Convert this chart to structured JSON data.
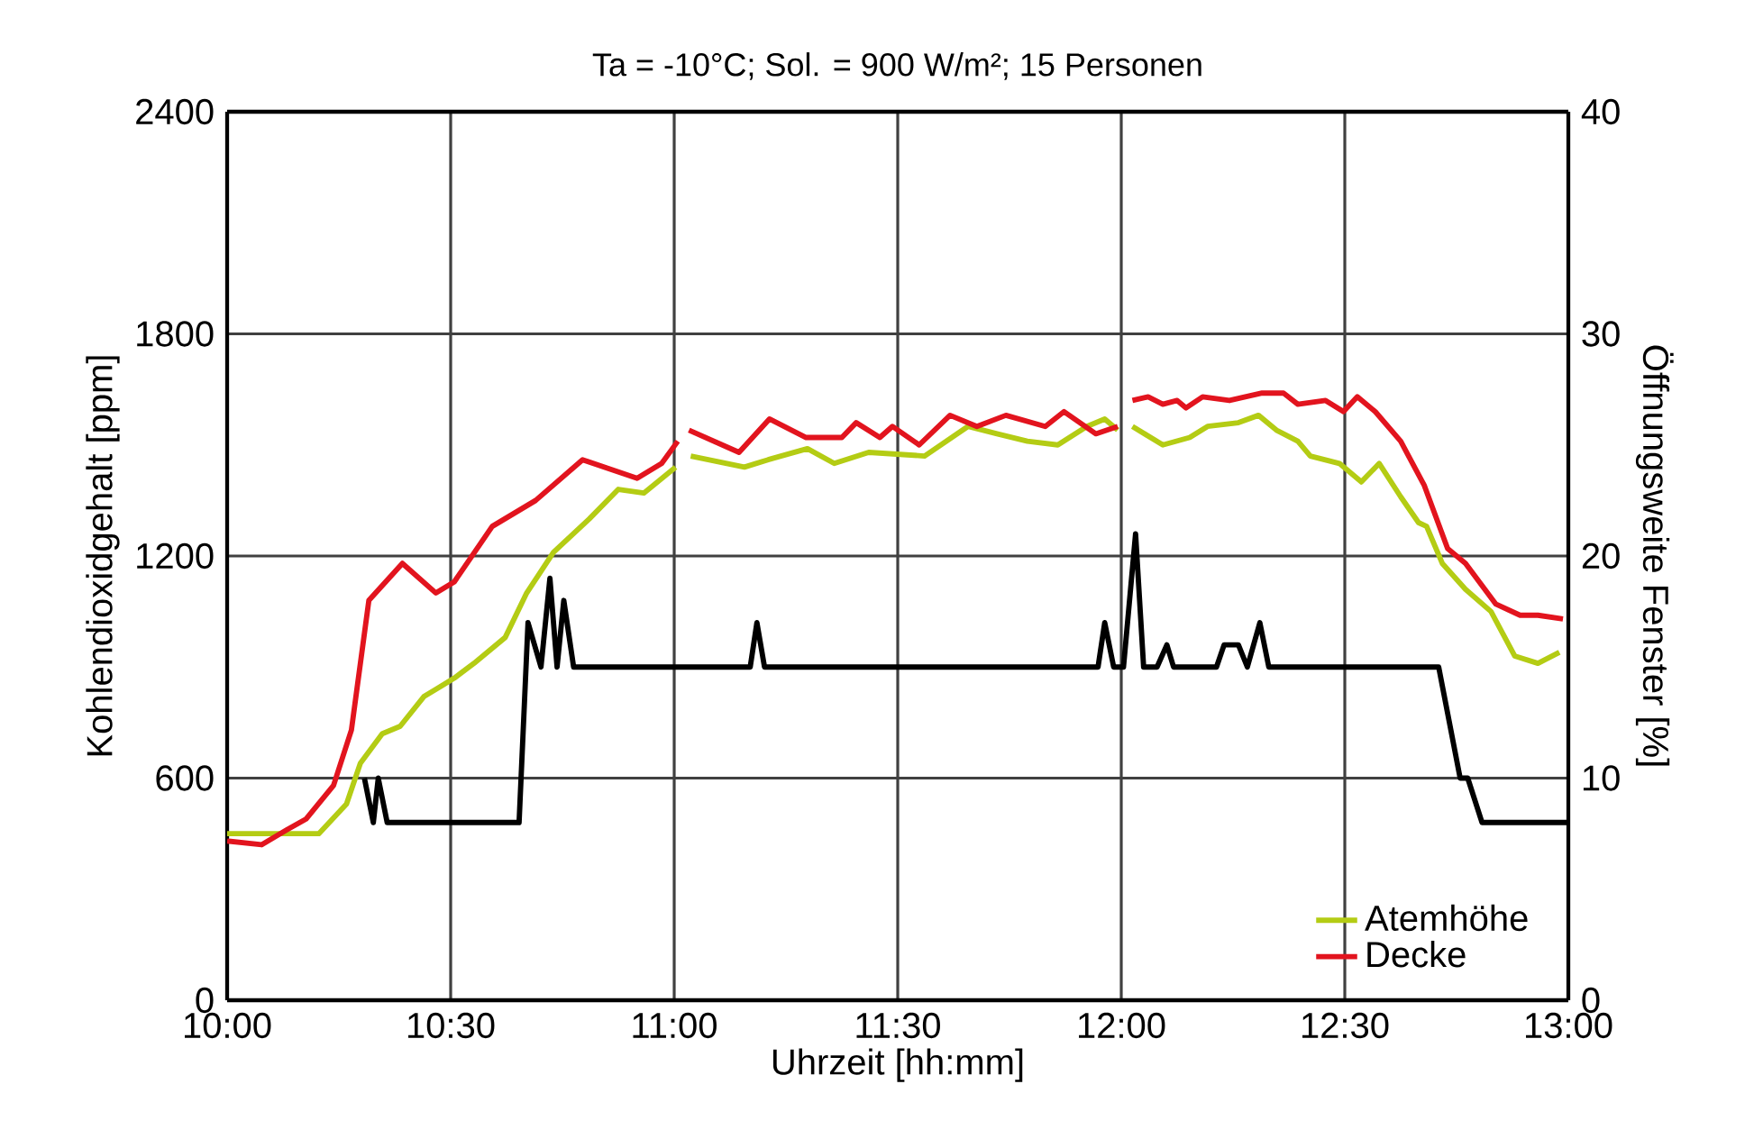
{
  "chart_data": {
    "type": "line",
    "title": "Ta = -10°C; Sol. = 900 W/m²; 15 Personen",
    "xlabel": "Uhrzeit [hh:mm]",
    "ylabel": "Kohlendioxidgehalt [ppm]",
    "y2label": "Öffnungsweite Fenster [%]",
    "xlim": [
      10,
      13
    ],
    "xticks": [
      {
        "value": 10,
        "label": "10:00"
      },
      {
        "value": 10.5,
        "label": "10:30"
      },
      {
        "value": 11,
        "label": "11:00"
      },
      {
        "value": 11.5,
        "label": "11:30"
      },
      {
        "value": 12,
        "label": "12:00"
      },
      {
        "value": 12.5,
        "label": "12:30"
      },
      {
        "value": 13,
        "label": "13:00"
      }
    ],
    "ylim": [
      0,
      2400
    ],
    "yticks": [
      0,
      600,
      1200,
      1800,
      2400
    ],
    "y2lim": [
      0,
      40
    ],
    "y2ticks": [
      0,
      10,
      20,
      30,
      40
    ],
    "grid": true,
    "legend": "bottom right",
    "series": [
      {
        "name": "Atemhöhe",
        "color": "#b4cc14",
        "x": [
          10.0,
          10.108,
          10.205,
          10.267,
          10.298,
          10.347,
          10.387,
          10.44,
          10.508,
          10.552,
          10.622,
          10.67,
          10.73,
          10.81,
          10.875,
          10.932,
          11.003,
          11.02,
          11.037,
          11.157,
          11.21,
          11.298,
          11.358,
          11.435,
          11.56,
          11.657,
          11.722,
          11.79,
          11.858,
          11.923,
          11.963,
          11.992,
          12.01,
          12.025,
          12.093,
          12.153,
          12.193,
          12.262,
          12.307,
          12.347,
          12.395,
          12.423,
          12.488,
          12.537,
          12.577,
          12.625,
          12.665,
          12.683,
          12.718,
          12.77,
          12.827,
          12.88,
          12.932,
          12.98
        ],
        "values": [
          450,
          450,
          450,
          530,
          640,
          720,
          740,
          820,
          870,
          910,
          980,
          1100,
          1210,
          1300,
          1380,
          1370,
          1440,
          null,
          1470,
          1440,
          1460,
          1490,
          1450,
          1480,
          1470,
          1550,
          1530,
          1510,
          1500,
          1550,
          1570,
          1540,
          null,
          1550,
          1500,
          1520,
          1550,
          1560,
          1580,
          1540,
          1510,
          1470,
          1450,
          1400,
          1450,
          1360,
          1290,
          1280,
          1180,
          1110,
          1050,
          930,
          910,
          940
        ]
      },
      {
        "name": "Decke",
        "color": "#e2141e",
        "x": [
          10.0,
          10.077,
          10.133,
          10.177,
          10.238,
          10.278,
          10.317,
          10.392,
          10.467,
          10.508,
          10.593,
          10.69,
          10.795,
          10.917,
          10.972,
          11.008,
          11.02,
          11.033,
          11.145,
          11.213,
          11.295,
          11.375,
          11.407,
          11.46,
          11.488,
          11.548,
          11.617,
          11.677,
          11.742,
          11.83,
          11.872,
          11.943,
          11.992,
          12.01,
          12.025,
          12.06,
          12.093,
          12.125,
          12.145,
          12.182,
          12.242,
          12.315,
          12.363,
          12.395,
          12.457,
          12.497,
          12.528,
          12.568,
          12.625,
          12.678,
          12.73,
          12.77,
          12.838,
          12.892,
          12.932,
          12.988
        ],
        "values": [
          430,
          420,
          460,
          490,
          580,
          730,
          1080,
          1180,
          1100,
          1130,
          1280,
          1350,
          1460,
          1410,
          1450,
          1510,
          null,
          1540,
          1480,
          1570,
          1520,
          1520,
          1560,
          1520,
          1550,
          1500,
          1580,
          1550,
          1580,
          1550,
          1590,
          1530,
          1550,
          null,
          1620,
          1630,
          1610,
          1620,
          1600,
          1630,
          1620,
          1640,
          1640,
          1610,
          1620,
          1590,
          1630,
          1590,
          1510,
          1390,
          1220,
          1180,
          1070,
          1040,
          1040,
          1030
        ]
      },
      {
        "color": "#000000",
        "axis": "y2",
        "x": [
          10.307,
          10.327,
          10.338,
          10.358,
          10.653,
          10.673,
          10.702,
          10.722,
          10.738,
          10.753,
          10.775,
          11.17,
          11.185,
          11.202,
          11.948,
          11.963,
          11.983,
          12.005,
          12.032,
          12.05,
          12.08,
          12.102,
          12.117,
          12.213,
          12.23,
          12.262,
          12.282,
          12.31,
          12.33,
          12.71,
          12.758,
          12.775,
          12.807,
          13.0
        ],
        "values": [
          10,
          8,
          10,
          8,
          8,
          17,
          15,
          19,
          15,
          18,
          15,
          15,
          17,
          15,
          15,
          17,
          15,
          15,
          21,
          15,
          15,
          16,
          15,
          15,
          16,
          16,
          15,
          17,
          15,
          15,
          10,
          10,
          8,
          8
        ]
      }
    ]
  }
}
